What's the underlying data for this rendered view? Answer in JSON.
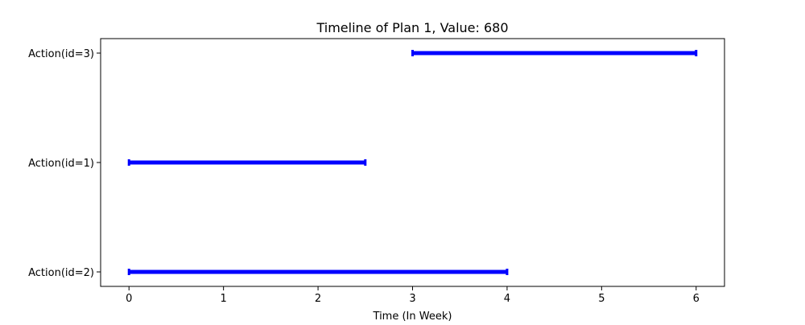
{
  "chart_data": {
    "type": "timeline",
    "title": "Timeline of Plan 1, Value: 680",
    "xlabel": "Time (In Week)",
    "ylabel": "",
    "xlim": [
      -0.3,
      6.3
    ],
    "x_ticks": [
      0,
      1,
      2,
      3,
      4,
      5,
      6
    ],
    "categories": [
      "Action(id=2)",
      "Action(id=1)",
      "Action(id=3)"
    ],
    "bars": [
      {
        "label": "Action(id=2)",
        "start": 0,
        "end": 4
      },
      {
        "label": "Action(id=1)",
        "start": 0,
        "end": 2.5
      },
      {
        "label": "Action(id=3)",
        "start": 3,
        "end": 6
      }
    ],
    "bar_color": "#0000ff",
    "grid": false,
    "legend": "none"
  }
}
